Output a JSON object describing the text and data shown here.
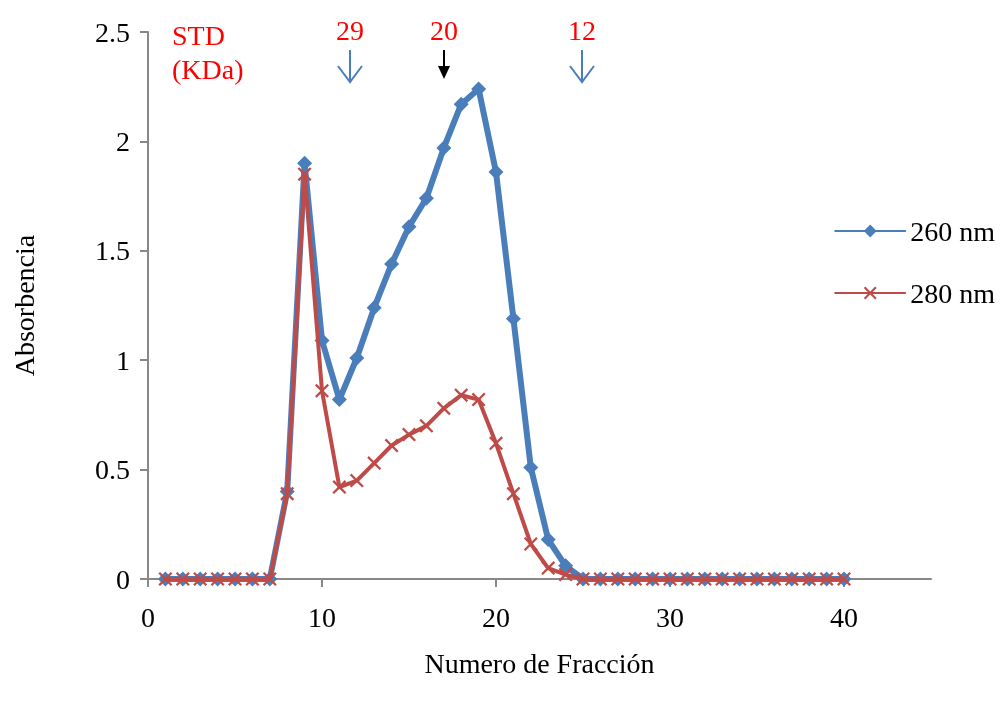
{
  "chart_data": {
    "type": "line",
    "xlabel": "Numero de Fracción",
    "ylabel": "Absorbencia",
    "x": [
      1,
      2,
      3,
      4,
      5,
      6,
      7,
      8,
      9,
      10,
      11,
      12,
      13,
      14,
      15,
      16,
      17,
      18,
      19,
      20,
      21,
      22,
      23,
      24,
      25,
      26,
      27,
      28,
      29,
      30,
      31,
      32,
      33,
      34,
      35,
      36,
      37,
      38,
      39,
      40
    ],
    "series": [
      {
        "name": "260 nm",
        "color": "#4a7ebb",
        "marker": "diamond",
        "values": [
          0,
          0,
          0,
          0,
          0,
          0,
          0,
          0.4,
          1.9,
          1.09,
          0.82,
          1.01,
          1.24,
          1.44,
          1.61,
          1.74,
          1.97,
          2.17,
          2.24,
          1.86,
          1.19,
          0.51,
          0.18,
          0.06,
          0,
          0,
          0,
          0,
          0,
          0,
          0,
          0,
          0,
          0,
          0,
          0,
          0,
          0,
          0,
          0
        ]
      },
      {
        "name": "280 nm",
        "color": "#be4b48",
        "marker": "cross",
        "values": [
          0,
          0,
          0,
          0,
          0,
          0,
          0,
          0.39,
          1.85,
          0.86,
          0.42,
          0.45,
          0.53,
          0.61,
          0.66,
          0.7,
          0.78,
          0.84,
          0.82,
          0.62,
          0.39,
          0.16,
          0.05,
          0.02,
          0,
          0,
          0,
          0,
          0,
          0,
          0,
          0,
          0,
          0,
          0,
          0,
          0,
          0,
          0,
          0
        ]
      }
    ],
    "xlim": [
      0,
      45
    ],
    "xticks": [
      0,
      10,
      20,
      30,
      40
    ],
    "ylim": [
      0,
      2.5
    ],
    "yticks": [
      0,
      0.5,
      1,
      1.5,
      2,
      2.5
    ],
    "grid": false,
    "legend": "right",
    "line_style": "solid",
    "annotations": [
      "STD (KDa)",
      "29",
      "20",
      "12"
    ]
  }
}
